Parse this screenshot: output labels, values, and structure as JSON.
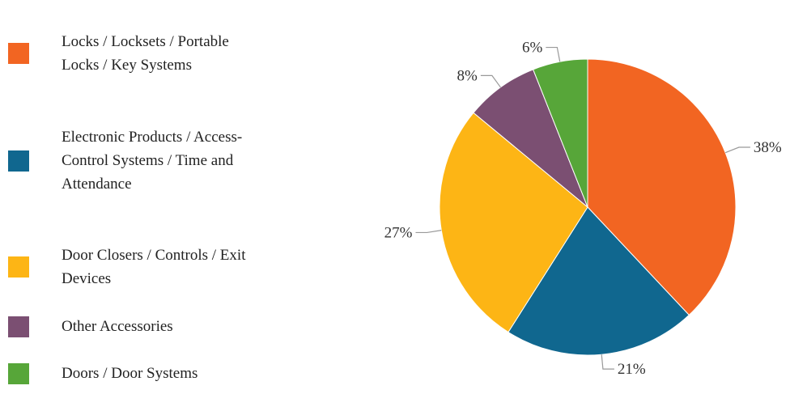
{
  "chart_data": {
    "type": "pie",
    "legend_position": "left",
    "slices": [
      {
        "label": "Locks / Locksets / Portable Locks / Key Systems",
        "value": 38,
        "value_label": "38%",
        "color": "#F26522"
      },
      {
        "label": "Electronic Products / Access-Control Systems / Time and Attendance",
        "value": 21,
        "value_label": "21%",
        "color": "#10678F"
      },
      {
        "label": "Door Closers / Controls / Exit Devices",
        "value": 27,
        "value_label": "27%",
        "color": "#FDB515"
      },
      {
        "label": "Other Accessories",
        "value": 8,
        "value_label": "8%",
        "color": "#7B4F72"
      },
      {
        "label": "Doors / Door Systems",
        "value": 6,
        "value_label": "6%",
        "color": "#57A639"
      }
    ]
  }
}
